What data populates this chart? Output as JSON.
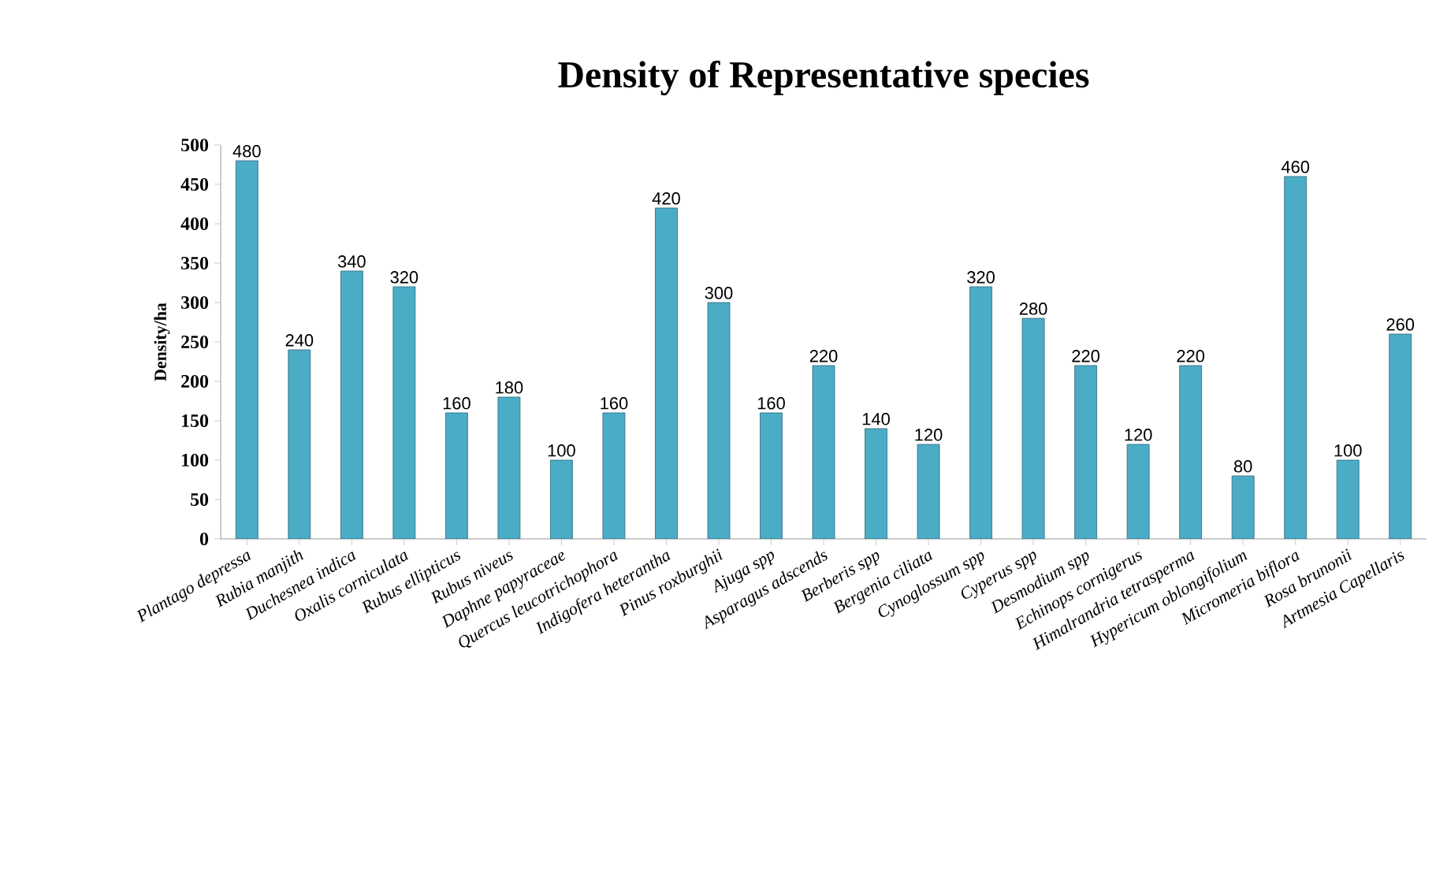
{
  "chart_data": {
    "type": "bar",
    "title": "Density of Representative species",
    "ylabel": "Density/ha",
    "categories": [
      "Plantago depressa",
      "Rubia manjith",
      "Duchesnea indica",
      "Oxalis corniculata",
      "Rubus ellipticus",
      "Rubus niveus",
      "Daphne papyraceae",
      "Quercus leucotrichophora",
      "Indigofera heterantha",
      "Pinus roxburghii",
      "Ajuga spp",
      "Asparagus adscends",
      "Berberis spp",
      "Bergenia ciliata",
      "Cynoglossum spp",
      "Cyperus spp",
      "Desmodium spp",
      "Echinops cornigerus",
      "Himalrandria tetrasperma",
      "Hypericum oblongifolium",
      "Micromeria biflora",
      "Rosa brunonii",
      "Artmesia Capellaris"
    ],
    "values": [
      480,
      240,
      340,
      320,
      160,
      180,
      100,
      160,
      420,
      300,
      160,
      220,
      140,
      120,
      320,
      280,
      220,
      120,
      220,
      80,
      460,
      100,
      260
    ],
    "color": "#4bacc6",
    "data_labels": true,
    "ylim": [
      0,
      500
    ],
    "yticks": [
      0,
      50,
      100,
      150,
      200,
      250,
      300,
      350,
      400,
      450,
      500
    ]
  }
}
